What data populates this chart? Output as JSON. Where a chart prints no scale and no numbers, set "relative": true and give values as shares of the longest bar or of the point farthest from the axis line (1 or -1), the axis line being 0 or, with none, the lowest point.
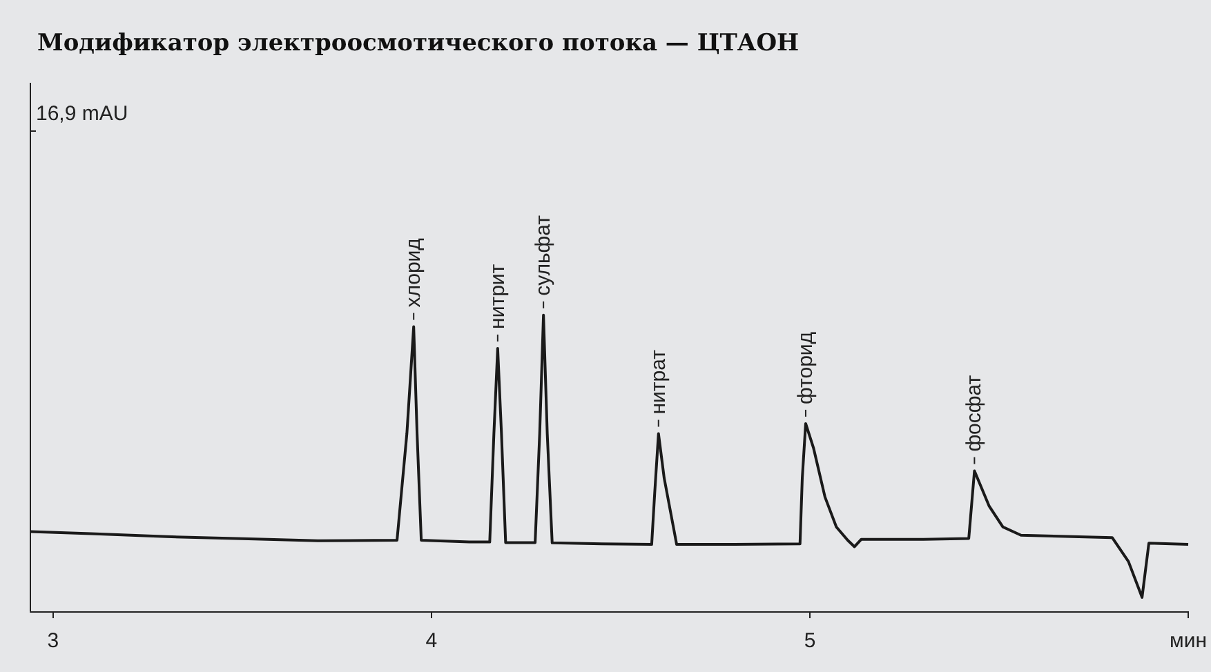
{
  "chart_data": {
    "type": "line",
    "title": "Модификатор электроосмотического потока — ЦТАОН",
    "relative": true,
    "marker": "none",
    "line_style": "solid",
    "grid": false,
    "xlim": [
      2.94,
      6.0
    ],
    "xticks": [
      3,
      4,
      5,
      {
        "value": 6,
        "label": "мин"
      }
    ],
    "series": [
      {
        "color": "#1a1a1a",
        "x": [
          2.94,
          3.1,
          3.3,
          3.5,
          3.7,
          3.909,
          3.935,
          3.953,
          3.962,
          3.973,
          4.1,
          4.154,
          4.165,
          4.175,
          4.185,
          4.196,
          4.26,
          4.274,
          4.286,
          4.296,
          4.306,
          4.319,
          4.45,
          4.582,
          4.59,
          4.6,
          4.615,
          4.648,
          4.8,
          4.974,
          4.98,
          4.989,
          5.01,
          5.04,
          5.07,
          5.1,
          5.118,
          5.136,
          5.3,
          5.42,
          5.435,
          5.474,
          5.51,
          5.558,
          5.799,
          5.842,
          5.878,
          5.896,
          6.0
        ],
        "values": [
          0.269,
          0.262,
          0.252,
          0.245,
          0.238,
          0.24,
          0.6,
          0.961,
          0.6,
          0.24,
          0.234,
          0.234,
          0.6,
          0.888,
          0.6,
          0.232,
          0.232,
          0.232,
          0.6,
          1.0,
          0.6,
          0.231,
          0.228,
          0.226,
          0.4,
          0.6,
          0.45,
          0.226,
          0.226,
          0.228,
          0.45,
          0.634,
          0.55,
          0.386,
          0.285,
          0.24,
          0.218,
          0.243,
          0.243,
          0.246,
          0.474,
          0.355,
          0.285,
          0.257,
          0.249,
          0.168,
          0.047,
          0.23,
          0.226
        ]
      }
    ],
    "annotations": [
      "16,9 mAU",
      {
        "text": "хлорид",
        "x": 3.953,
        "y": 0.961
      },
      {
        "text": "нитрит",
        "x": 4.175,
        "y": 0.888
      },
      {
        "text": "сульфат",
        "x": 4.296,
        "y": 1.0
      },
      {
        "text": "нитрат",
        "x": 4.6,
        "y": 0.6
      },
      {
        "text": "фторид",
        "x": 4.989,
        "y": 0.634
      },
      {
        "text": "фосфат",
        "x": 5.435,
        "y": 0.474
      }
    ]
  }
}
